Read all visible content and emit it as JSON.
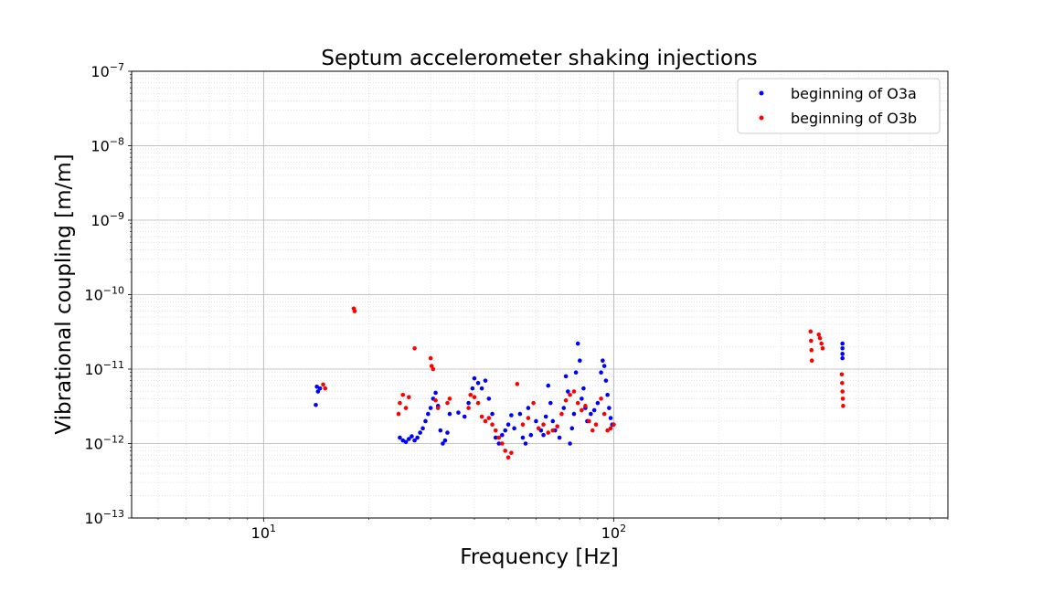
{
  "chart_data": {
    "type": "scatter",
    "title": "Septum accelerometer shaking injections",
    "xlabel": "Frequency [Hz]",
    "ylabel": "Vibrational coupling [m/m]",
    "x_scale": "log",
    "y_scale": "log",
    "xlim": [
      4.2,
      900
    ],
    "ylim": [
      1e-13,
      1e-07
    ],
    "grid": true,
    "legend_position": "upper-right",
    "x_ticks": [
      {
        "value": 10,
        "base": "10",
        "exp": "1"
      },
      {
        "value": 100,
        "base": "10",
        "exp": "2"
      }
    ],
    "y_ticks": [
      {
        "value": 1e-07,
        "base": "10",
        "exp": "−7"
      },
      {
        "value": 1e-08,
        "base": "10",
        "exp": "−8"
      },
      {
        "value": 1e-09,
        "base": "10",
        "exp": "−9"
      },
      {
        "value": 1e-10,
        "base": "10",
        "exp": "−10"
      },
      {
        "value": 1e-11,
        "base": "10",
        "exp": "−11"
      },
      {
        "value": 1e-12,
        "base": "10",
        "exp": "−12"
      },
      {
        "value": 1e-13,
        "base": "10",
        "exp": "−13"
      }
    ],
    "series": [
      {
        "name": "beginning of O3a",
        "color": "#0000ff",
        "points": [
          [
            14.2,
            5.8e-12
          ],
          [
            14.3,
            5e-12
          ],
          [
            14.1,
            3.3e-12
          ],
          [
            14.5,
            5.5e-12
          ],
          [
            24.5,
            1.2e-12
          ],
          [
            25.0,
            1.1e-12
          ],
          [
            25.5,
            1.05e-12
          ],
          [
            26.0,
            1.15e-12
          ],
          [
            26.5,
            1.25e-12
          ],
          [
            27.0,
            1.1e-12
          ],
          [
            27.5,
            1.2e-12
          ],
          [
            28.0,
            1.4e-12
          ],
          [
            28.5,
            1.6e-12
          ],
          [
            29.0,
            2e-12
          ],
          [
            29.5,
            2.5e-12
          ],
          [
            30.0,
            3e-12
          ],
          [
            30.5,
            4e-12
          ],
          [
            31.0,
            4.8e-12
          ],
          [
            31.5,
            3.2e-12
          ],
          [
            32.0,
            1.5e-12
          ],
          [
            32.5,
            1e-12
          ],
          [
            33.0,
            1.1e-12
          ],
          [
            33.5,
            1.4e-12
          ],
          [
            34.0,
            2.5e-12
          ],
          [
            36.0,
            2.6e-12
          ],
          [
            37.5,
            2.3e-12
          ],
          [
            38.5,
            3.5e-12
          ],
          [
            39.5,
            5.5e-12
          ],
          [
            40.0,
            7.5e-12
          ],
          [
            41.0,
            6.5e-12
          ],
          [
            42.0,
            5.5e-12
          ],
          [
            43.0,
            7e-12
          ],
          [
            44.0,
            4e-12
          ],
          [
            45.0,
            2.5e-12
          ],
          [
            46.0,
            1.2e-12
          ],
          [
            47.0,
            1e-12
          ],
          [
            48.0,
            1.3e-12
          ],
          [
            49.0,
            1.5e-12
          ],
          [
            50.0,
            1.8e-12
          ],
          [
            51.0,
            2.4e-12
          ],
          [
            52.0,
            1.6e-12
          ],
          [
            54.0,
            2.5e-12
          ],
          [
            55.0,
            1.2e-12
          ],
          [
            56.0,
            1e-12
          ],
          [
            57.0,
            3e-12
          ],
          [
            58.0,
            1.3e-12
          ],
          [
            60.0,
            2e-12
          ],
          [
            62.0,
            1.5e-12
          ],
          [
            63.0,
            1.3e-12
          ],
          [
            64.0,
            2.3e-12
          ],
          [
            65.0,
            6e-12
          ],
          [
            66.0,
            3.5e-12
          ],
          [
            67.0,
            2e-12
          ],
          [
            68.0,
            1.5e-12
          ],
          [
            70.0,
            1.2e-12
          ],
          [
            72.0,
            3e-12
          ],
          [
            73.0,
            8e-12
          ],
          [
            74.0,
            5e-12
          ],
          [
            75.0,
            1e-12
          ],
          [
            76.0,
            1.6e-12
          ],
          [
            77.0,
            2.5e-12
          ],
          [
            78.0,
            9e-12
          ],
          [
            79.0,
            2.2e-11
          ],
          [
            80.0,
            1.3e-11
          ],
          [
            81.0,
            4e-12
          ],
          [
            82.0,
            5.5e-12
          ],
          [
            83.0,
            3e-12
          ],
          [
            84.0,
            2e-12
          ],
          [
            86.0,
            2.5e-12
          ],
          [
            88.0,
            2.8e-12
          ],
          [
            90.0,
            3.5e-12
          ],
          [
            92.0,
            9e-12
          ],
          [
            93.0,
            1.3e-11
          ],
          [
            94.0,
            1.1e-11
          ],
          [
            95.0,
            7e-12
          ],
          [
            96.0,
            4.5e-12
          ],
          [
            97.0,
            3e-12
          ],
          [
            98.0,
            2.2e-12
          ],
          [
            99.0,
            1.8e-12
          ],
          [
            450,
            2.2e-11
          ],
          [
            450,
            1.9e-11
          ],
          [
            450,
            1.6e-11
          ],
          [
            450,
            1.4e-11
          ]
        ]
      },
      {
        "name": "beginning of O3b",
        "color": "#ff0000",
        "points": [
          [
            18.1,
            6.5e-11
          ],
          [
            18.2,
            6e-11
          ],
          [
            14.8,
            6.2e-12
          ],
          [
            15.0,
            5.5e-12
          ],
          [
            24.5,
            3.5e-12
          ],
          [
            25.0,
            4.5e-12
          ],
          [
            25.5,
            3e-12
          ],
          [
            26.0,
            4.2e-12
          ],
          [
            24.3,
            2.5e-12
          ],
          [
            27.0,
            1.9e-11
          ],
          [
            30.0,
            1.4e-11
          ],
          [
            30.2,
            1.1e-11
          ],
          [
            30.5,
            1e-11
          ],
          [
            31.0,
            3.8e-12
          ],
          [
            31.5,
            3e-12
          ],
          [
            33.5,
            3.5e-12
          ],
          [
            34.0,
            4e-12
          ],
          [
            38.5,
            3e-12
          ],
          [
            39.0,
            4.5e-12
          ],
          [
            40.0,
            4.2e-12
          ],
          [
            41.0,
            3.5e-12
          ],
          [
            42.0,
            2.3e-12
          ],
          [
            43.0,
            2e-12
          ],
          [
            44.0,
            2.2e-12
          ],
          [
            45.0,
            1.8e-12
          ],
          [
            46.0,
            1.5e-12
          ],
          [
            47.0,
            1.2e-12
          ],
          [
            48.0,
            1e-12
          ],
          [
            49.0,
            8e-13
          ],
          [
            50.0,
            6.5e-13
          ],
          [
            51.0,
            7.5e-13
          ],
          [
            53.0,
            6.3e-12
          ],
          [
            55.0,
            1.8e-12
          ],
          [
            57.0,
            2.2e-12
          ],
          [
            59.0,
            3.5e-12
          ],
          [
            61.0,
            1.6e-12
          ],
          [
            63.0,
            1.8e-12
          ],
          [
            65.0,
            1.4e-12
          ],
          [
            67.0,
            1.5e-12
          ],
          [
            69.0,
            1.7e-12
          ],
          [
            71.0,
            2.5e-12
          ],
          [
            73.0,
            3.8e-12
          ],
          [
            75.0,
            4.5e-12
          ],
          [
            77.0,
            5e-12
          ],
          [
            79.0,
            3.5e-12
          ],
          [
            81.0,
            2.8e-12
          ],
          [
            83.0,
            3.2e-12
          ],
          [
            85.0,
            2e-12
          ],
          [
            87.0,
            1.5e-12
          ],
          [
            89.0,
            1.8e-12
          ],
          [
            92.0,
            4e-12
          ],
          [
            94.0,
            2.5e-12
          ],
          [
            96.0,
            1.5e-12
          ],
          [
            98.0,
            1.6e-12
          ],
          [
            100.0,
            1.8e-12
          ],
          [
            365,
            3.2e-11
          ],
          [
            366,
            2.4e-11
          ],
          [
            367,
            1.8e-11
          ],
          [
            368,
            1.3e-11
          ],
          [
            385,
            2.9e-11
          ],
          [
            388,
            2.6e-11
          ],
          [
            392,
            2.2e-11
          ],
          [
            395,
            1.9e-11
          ],
          [
            448,
            8.5e-12
          ],
          [
            449,
            6.5e-12
          ],
          [
            450,
            5e-12
          ],
          [
            451,
            4e-12
          ],
          [
            452,
            3.2e-12
          ]
        ]
      }
    ]
  }
}
